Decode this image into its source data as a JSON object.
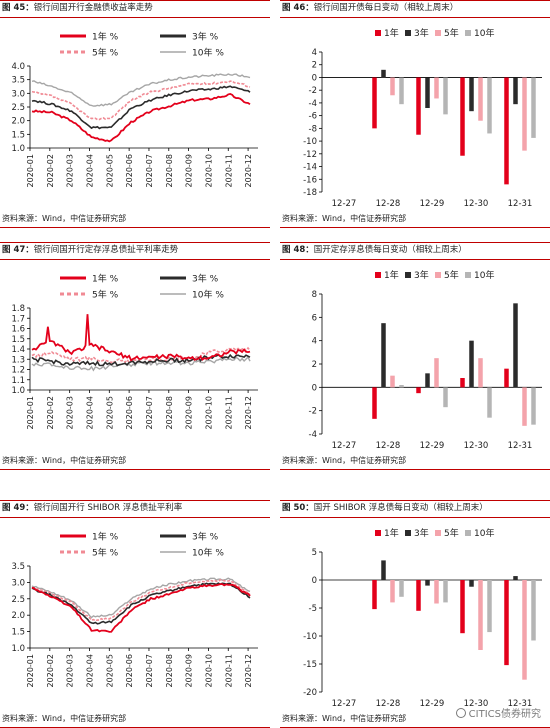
{
  "charts": [
    {
      "id": "f45",
      "fig": "图 45：",
      "title": "银行间国开行金融债收益率走势",
      "source": "资料来源：Wind，中信证券研究部",
      "chart_data": {
        "type": "line",
        "title": "银行间国开行金融债收益率走势",
        "x_ticks": [
          "2020-01",
          "2020-02",
          "2020-03",
          "2020-04",
          "2020-05",
          "2020-06",
          "2020-07",
          "2020-08",
          "2020-09",
          "2020-10",
          "2020-11",
          "2020-12"
        ],
        "ylim": [
          1.0,
          4.0
        ],
        "y_ticks": [
          "1.0",
          "1.5",
          "2.0",
          "2.5",
          "3.0",
          "3.5",
          "4.0"
        ],
        "grid": false,
        "legend_position": "top",
        "series": [
          {
            "name": "1年 %",
            "color": "#e3001b",
            "dash": "solid",
            "values": [
              2.35,
              2.3,
              2.0,
              1.4,
              1.25,
              1.95,
              2.35,
              2.55,
              2.75,
              2.8,
              2.95,
              2.6
            ]
          },
          {
            "name": "3年 %",
            "color": "#2b2b2b",
            "dash": "solid",
            "values": [
              2.75,
              2.6,
              2.35,
              1.75,
              1.75,
              2.45,
              2.75,
              2.95,
              3.1,
              3.15,
              3.25,
              3.05
            ]
          },
          {
            "name": "5年 %",
            "color": "#f08a94",
            "dash": "dashed",
            "values": [
              3.05,
              2.9,
              2.6,
              2.05,
              2.1,
              2.75,
              3.05,
              3.2,
              3.35,
              3.35,
              3.45,
              3.25
            ]
          },
          {
            "name": "10年 %",
            "color": "#a6a6a6",
            "dash": "solid",
            "values": [
              3.45,
              3.25,
              3.0,
              2.55,
              2.6,
              3.05,
              3.35,
              3.5,
              3.6,
              3.65,
              3.7,
              3.6
            ]
          }
        ]
      }
    },
    {
      "id": "f46",
      "fig": "图 46：",
      "title": "银行间国开债每日变动（相较上周末）",
      "source": "资料来源：Wind，中信证券研究部",
      "chart_data": {
        "type": "bar",
        "title": "银行间国开债每日变动（相较上周末）",
        "categories": [
          "12-27",
          "12-28",
          "12-29",
          "12-30",
          "12-31"
        ],
        "ylim": [
          -18,
          4
        ],
        "y_ticks": [
          "4",
          "2",
          "0",
          "-2",
          "-4",
          "-6",
          "-8",
          "-10",
          "-12",
          "-14",
          "-16",
          "-18"
        ],
        "grid": false,
        "legend_position": "top",
        "series": [
          {
            "name": "1年",
            "color": "#e3001b",
            "values": [
              0,
              -8,
              -9,
              -12.3,
              -16.8
            ]
          },
          {
            "name": "3年",
            "color": "#2b2b2b",
            "values": [
              0,
              1.2,
              -4.8,
              -5.3,
              -4.2
            ]
          },
          {
            "name": "5年",
            "color": "#f4a3ab",
            "values": [
              0,
              -2.8,
              -3.3,
              -6.8,
              -11.5
            ]
          },
          {
            "name": "10年",
            "color": "#b5b5b5",
            "values": [
              0,
              -4.2,
              -5.8,
              -8.8,
              -9.5
            ]
          }
        ]
      }
    },
    {
      "id": "f47",
      "fig": "图 47：",
      "title": "银行间国开行定存浮息债扯平利率走势",
      "source": "资料来源：Wind，中信证券研究部",
      "chart_data": {
        "type": "line",
        "title": "银行间国开行定存浮息债扯平利率走势",
        "x_ticks": [
          "2020-01",
          "2020-02",
          "2020-03",
          "2020-04",
          "2020-05",
          "2020-06",
          "2020-07",
          "2020-08",
          "2020-09",
          "2020-10",
          "2020-11",
          "2020-12"
        ],
        "ylim": [
          1.0,
          1.8
        ],
        "y_ticks": [
          "1.0",
          "1.1",
          "1.2",
          "1.3",
          "1.4",
          "1.5",
          "1.6",
          "1.7",
          "1.8"
        ],
        "grid": false,
        "legend_position": "top",
        "series": [
          {
            "name": "1年 %",
            "color": "#e3001b",
            "dash": "solid",
            "values": [
              1.4,
              1.47,
              1.36,
              1.44,
              1.37,
              1.31,
              1.32,
              1.33,
              1.31,
              1.32,
              1.37,
              1.38
            ]
          },
          {
            "name": "3年 %",
            "color": "#2b2b2b",
            "dash": "solid",
            "values": [
              1.3,
              1.28,
              1.25,
              1.26,
              1.25,
              1.27,
              1.28,
              1.29,
              1.29,
              1.32,
              1.33,
              1.33
            ]
          },
          {
            "name": "5年 %",
            "color": "#f08a94",
            "dash": "dashed",
            "values": [
              1.33,
              1.37,
              1.3,
              1.31,
              1.28,
              1.29,
              1.3,
              1.3,
              1.3,
              1.37,
              1.4,
              1.4
            ]
          },
          {
            "name": "10年 %",
            "color": "#a6a6a6",
            "dash": "solid",
            "values": [
              1.26,
              1.24,
              1.22,
              1.21,
              1.23,
              1.25,
              1.26,
              1.27,
              1.26,
              1.28,
              1.31,
              1.3
            ]
          }
        ]
      }
    },
    {
      "id": "f48",
      "fig": "图 48：",
      "title": "国开定存浮息债每日变动（相较上周末）",
      "source": "资料来源：Wind，中信证券研究部",
      "chart_data": {
        "type": "bar",
        "title": "国开定存浮息债每日变动（相较上周末）",
        "categories": [
          "12-27",
          "12-28",
          "12-29",
          "12-30",
          "12-31"
        ],
        "ylim": [
          -4,
          8
        ],
        "y_ticks": [
          "8",
          "6",
          "4",
          "2",
          "0",
          "-2",
          "-4"
        ],
        "grid": false,
        "legend_position": "top",
        "series": [
          {
            "name": "1年",
            "color": "#e3001b",
            "values": [
              0,
              -2.7,
              -0.5,
              0.8,
              1.6
            ]
          },
          {
            "name": "3年",
            "color": "#2b2b2b",
            "values": [
              0,
              5.5,
              1.2,
              4.0,
              7.2
            ]
          },
          {
            "name": "5年",
            "color": "#f4a3ab",
            "values": [
              0,
              1.0,
              2.5,
              2.5,
              -3.3
            ]
          },
          {
            "name": "10年",
            "color": "#b5b5b5",
            "values": [
              0,
              0.2,
              -1.7,
              -2.6,
              -3.2
            ]
          }
        ]
      }
    },
    {
      "id": "f49",
      "fig": "图 49：",
      "title": "银行间国开行 SHIBOR 浮息债扯平利率",
      "source": "资料来源：Wind，中信证券研究部",
      "chart_data": {
        "type": "line",
        "title": "银行间国开行 SHIBOR 浮息债扯平利率",
        "x_ticks": [
          "2020-01",
          "2020-02",
          "2020-03",
          "2020-04",
          "2020-05",
          "2020-06",
          "2020-07",
          "2020-08",
          "2020-09",
          "2020-10",
          "2020-11",
          "2020-12"
        ],
        "ylim": [
          1.0,
          3.5
        ],
        "y_ticks": [
          "1.0",
          "1.5",
          "2.0",
          "2.5",
          "3.0",
          "3.5"
        ],
        "grid": false,
        "legend_position": "top",
        "series": [
          {
            "name": "1年 %",
            "color": "#e3001b",
            "dash": "solid",
            "values": [
              2.85,
              2.55,
              2.25,
              1.55,
              1.5,
              2.15,
              2.5,
              2.65,
              2.85,
              2.9,
              2.95,
              2.6
            ]
          },
          {
            "name": "3年 %",
            "color": "#2b2b2b",
            "dash": "solid",
            "values": [
              2.8,
              2.6,
              2.3,
              1.75,
              1.8,
              2.3,
              2.6,
              2.75,
              2.9,
              2.95,
              2.95,
              2.55
            ]
          },
          {
            "name": "5年 %",
            "color": "#f08a94",
            "dash": "dashed",
            "values": [
              2.85,
              2.65,
              2.4,
              1.85,
              1.9,
              2.4,
              2.7,
              2.85,
              3.0,
              3.05,
              3.05,
              2.65
            ]
          },
          {
            "name": "10年 %",
            "color": "#a6a6a6",
            "dash": "solid",
            "values": [
              2.9,
              2.7,
              2.45,
              1.95,
              2.0,
              2.5,
              2.8,
              2.95,
              3.05,
              3.1,
              3.1,
              2.7
            ]
          }
        ]
      }
    },
    {
      "id": "f50",
      "fig": "图 50：",
      "title": "国开 SHIBOR 浮息债每日变动（相较上周末）",
      "source": "资料来源：Wind，中信证券研究部",
      "chart_data": {
        "type": "bar",
        "title": "国开 SHIBOR 浮息债每日变动（相较上周末）",
        "categories": [
          "12-27",
          "12-28",
          "12-29",
          "12-30",
          "12-31"
        ],
        "ylim": [
          -20,
          5
        ],
        "y_ticks": [
          "5",
          "0",
          "-5",
          "-10",
          "-15",
          "-20"
        ],
        "grid": false,
        "legend_position": "top",
        "series": [
          {
            "name": "1年",
            "color": "#e3001b",
            "values": [
              0,
              -5.2,
              -5.5,
              -9.5,
              -15.2
            ]
          },
          {
            "name": "3年",
            "color": "#2b2b2b",
            "values": [
              0,
              3.5,
              -1.0,
              -1.2,
              0.7
            ]
          },
          {
            "name": "5年",
            "color": "#f4a3ab",
            "values": [
              0,
              -4.0,
              -4.2,
              -12.5,
              -17.8
            ]
          },
          {
            "name": "10年",
            "color": "#b5b5b5",
            "values": [
              0,
              -3.0,
              -4.0,
              -9.3,
              -10.8
            ]
          }
        ]
      }
    }
  ],
  "watermark": "CITICS债券研究"
}
